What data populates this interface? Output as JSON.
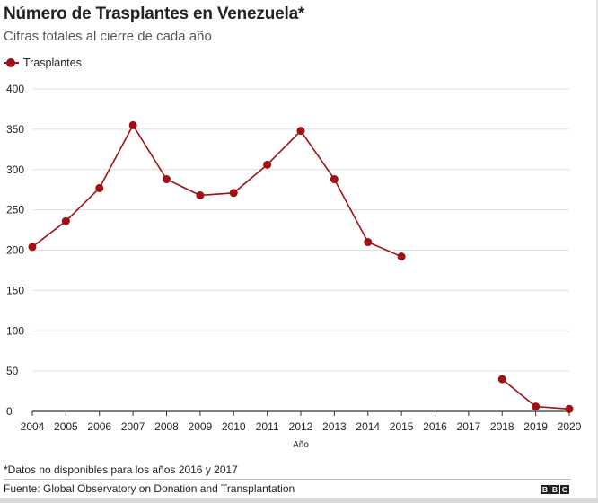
{
  "colors": {
    "series": "#a10f12",
    "grid": "#dddddd",
    "axis": "#333333",
    "text": "#222222"
  },
  "chart_data": {
    "type": "line",
    "title": "Número de Trasplantes en Venezuela*",
    "subtitle": "Cifras totales al cierre de cada año",
    "xlabel": "Año",
    "ylabel": "",
    "x": [
      2004,
      2005,
      2006,
      2007,
      2008,
      2009,
      2010,
      2011,
      2012,
      2013,
      2014,
      2015,
      2016,
      2017,
      2018,
      2019,
      2020
    ],
    "ylim": [
      0,
      400
    ],
    "yticks": [
      0,
      50,
      100,
      150,
      200,
      250,
      300,
      350,
      400
    ],
    "grid": true,
    "legend_position": "top-left",
    "series": [
      {
        "name": "Trasplantes",
        "values": [
          204,
          236,
          277,
          355,
          288,
          268,
          271,
          306,
          348,
          288,
          210,
          192,
          null,
          null,
          40,
          6,
          3
        ]
      }
    ]
  },
  "footnote": "*Datos no disponibles para los años 2016 y 2017",
  "source": "Fuente: Global Observatory on Donation and Transplantation",
  "logo": [
    "B",
    "B",
    "C"
  ]
}
